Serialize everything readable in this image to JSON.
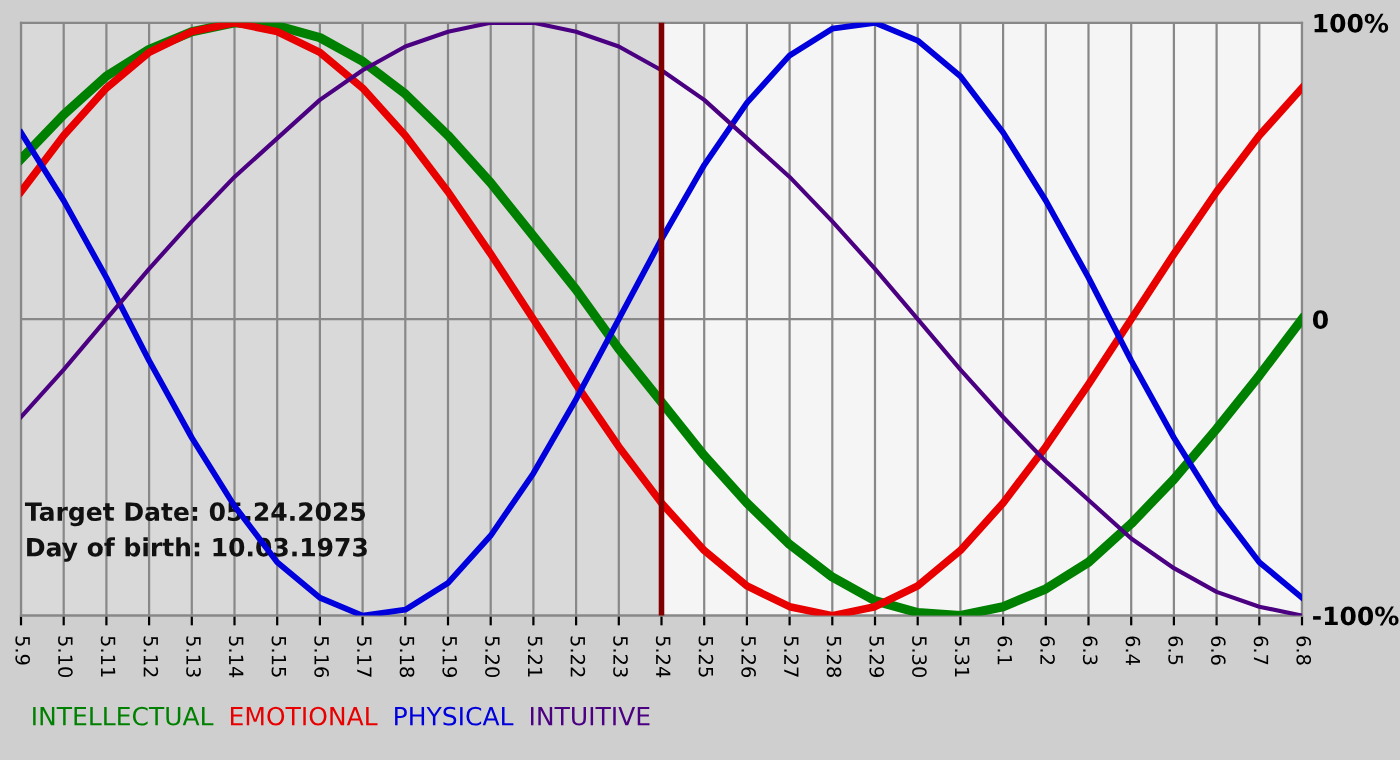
{
  "chart_data": {
    "type": "line",
    "categories": [
      "5.9",
      "5.10",
      "5.11",
      "5.12",
      "5.13",
      "5.14",
      "5.15",
      "5.16",
      "5.17",
      "5.18",
      "5.19",
      "5.20",
      "5.21",
      "5.22",
      "5.23",
      "5.24",
      "5.25",
      "5.26",
      "5.27",
      "5.28",
      "5.29",
      "5.30",
      "5.31",
      "6.1",
      "6.2",
      "6.3",
      "6.4",
      "6.5",
      "6.6",
      "6.7",
      "6.8"
    ],
    "series": [
      {
        "name": "INTELLECTUAL",
        "color": "#008000",
        "values": [
          54,
          69,
          82,
          91,
          97,
          100,
          99,
          95,
          87,
          76,
          62,
          46,
          28,
          10,
          -10,
          -28,
          -46,
          -62,
          -76,
          -87,
          -95,
          -99,
          -100,
          -97,
          -91,
          -82,
          -69,
          -54,
          -37,
          -19,
          0
        ]
      },
      {
        "name": "EMOTIONAL",
        "color": "#e80000",
        "values": [
          43,
          62,
          78,
          90,
          97,
          100,
          97,
          90,
          78,
          62,
          43,
          22,
          0,
          -22,
          -43,
          -62,
          -78,
          -90,
          -97,
          -100,
          -97,
          -90,
          -78,
          -62,
          -43,
          -22,
          0,
          22,
          43,
          62,
          78
        ]
      },
      {
        "name": "PHYSICAL",
        "color": "#0000dd",
        "values": [
          63,
          40,
          14,
          -14,
          -40,
          -63,
          -82,
          -94,
          -100,
          -98,
          -89,
          -73,
          -52,
          -27,
          0,
          27,
          52,
          73,
          89,
          98,
          100,
          94,
          82,
          63,
          40,
          14,
          -14,
          -40,
          -63,
          -82,
          -94
        ]
      },
      {
        "name": "INTUITIVE",
        "color": "#4b0082",
        "values": [
          -33,
          -17,
          0,
          17,
          33,
          48,
          61,
          74,
          84,
          92,
          97,
          100,
          100,
          97,
          92,
          84,
          74,
          61,
          48,
          33,
          17,
          0,
          -17,
          -33,
          -48,
          -61,
          -74,
          -84,
          -92,
          -97,
          -100
        ]
      }
    ],
    "ylim": [
      -100,
      100
    ],
    "yticks": [
      {
        "value": -100,
        "label": "-100%"
      },
      0,
      {
        "value": 100,
        "label": "100%"
      }
    ],
    "grid": true,
    "legend": "bottom",
    "ref_lines": [
      {
        "axis": "x",
        "value": "5.24",
        "color": "#800000"
      }
    ],
    "bands": [
      {
        "axis": "x",
        "from": "5.9",
        "to": "5.24",
        "color": "#d9d9d9"
      }
    ],
    "annotations": [
      "Target Date: 05.24.2025",
      "Day of birth: 10.03.1973"
    ]
  }
}
